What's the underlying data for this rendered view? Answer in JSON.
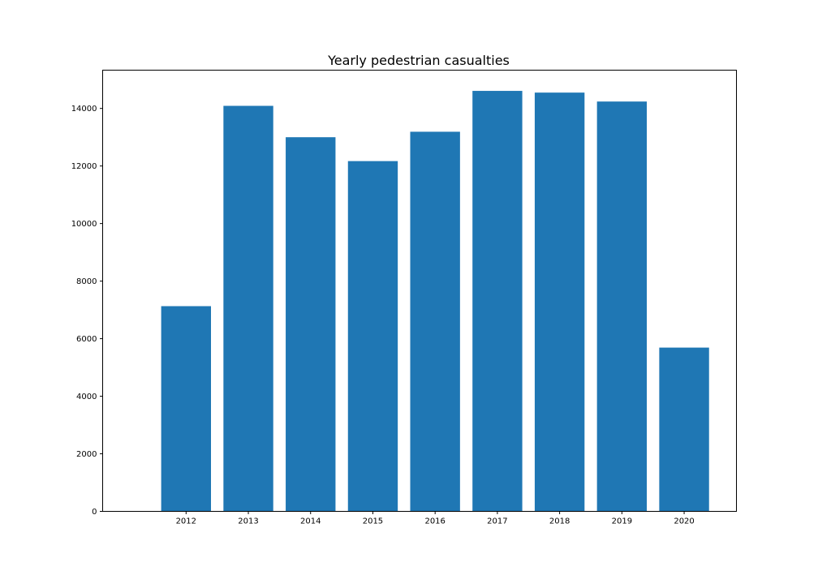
{
  "chart_data": {
    "type": "bar",
    "title": "Yearly pedestrian casualties",
    "xlabel": "",
    "ylabel": "",
    "categories": [
      "2012",
      "2013",
      "2014",
      "2015",
      "2016",
      "2017",
      "2018",
      "2019",
      "2020"
    ],
    "values": [
      7130,
      14090,
      13000,
      12170,
      13190,
      14610,
      14550,
      14240,
      5690
    ],
    "ylim": [
      0,
      15330
    ],
    "yticks": [
      "0",
      "2000",
      "4000",
      "6000",
      "8000",
      "10000",
      "12000",
      "14000"
    ],
    "bar_color": "#1f77b4",
    "grid": false,
    "legend": "none"
  }
}
